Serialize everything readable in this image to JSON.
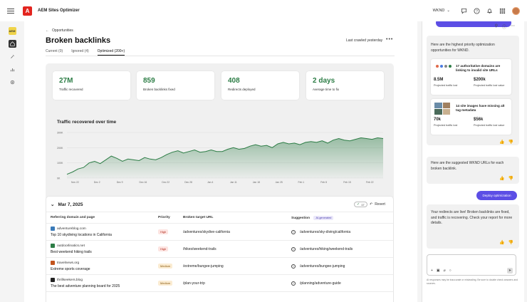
{
  "app": {
    "title": "AEM Sites Optimizer",
    "org": "WKND"
  },
  "left_rail": {
    "brand_label": "AEM"
  },
  "page": {
    "back_label": "Opportunities",
    "title": "Broken backlinks",
    "last_crawled": "Last crawled yesterday",
    "tabs": [
      {
        "label": "Current (0)",
        "active": false
      },
      {
        "label": "Ignored (4)",
        "active": false
      },
      {
        "label": "Optimized (200+)",
        "active": true
      }
    ]
  },
  "kpis": [
    {
      "value": "27M",
      "label": "Traffic recovered"
    },
    {
      "value": "859",
      "label": "Broken backlinks fixed"
    },
    {
      "value": "408",
      "label": "Redirects deployed"
    },
    {
      "value": "2 days",
      "label": "Average time to fix"
    }
  ],
  "chart_data": {
    "type": "area",
    "title": "Traffic recovered over time",
    "y_ticks": [
      "300K",
      "200K",
      "100K",
      "0K"
    ],
    "y_tick_values": [
      300,
      200,
      100,
      0
    ],
    "ylim": [
      0,
      300
    ],
    "x_ticks": [
      "Nov 22",
      "Dec 2",
      "Dec 9",
      "Dec 16",
      "Dec 22",
      "Dec 28",
      "Jan 4",
      "Jan 11",
      "Jan 18",
      "Jan 25",
      "Feb 1",
      "Feb 8",
      "Feb 15",
      "Feb 22"
    ],
    "series": [
      {
        "values": [
          25,
          40,
          60,
          70,
          100,
          110,
          95,
          120,
          145,
          130,
          110,
          125,
          120,
          115,
          135,
          125,
          120,
          135,
          155,
          170,
          180,
          165,
          175,
          185,
          170,
          175,
          185,
          175,
          175,
          190,
          200,
          190,
          195,
          210,
          220,
          210,
          215,
          200,
          225,
          235,
          225,
          230,
          220,
          235,
          240,
          235,
          245,
          230,
          250,
          260,
          250,
          245,
          255,
          265,
          260,
          255,
          265,
          260
        ]
      }
    ],
    "color": "#2d7d46"
  },
  "table": {
    "group_date": "Mar 7, 2025",
    "count": "17",
    "revert_label": "Revert",
    "headers": {
      "domain": "Referring domain and page",
      "priority": "Priority",
      "broken": "Broken target URL",
      "suggestion": "Suggestion",
      "ai_badge": "AI-generated"
    },
    "rows": [
      {
        "domain": "adventureblog.com",
        "page": "Top 10 skydiving locations in California",
        "priority": "High",
        "broken": "/adventures/skydive-california",
        "suggestion": "/adventures/sky-diving/california",
        "favicon": "#3a7ab8"
      },
      {
        "domain": "outdoorlinatics.net",
        "page": "Best weekend hiking trails",
        "priority": "High",
        "broken": "/hikes/weekend-trails",
        "suggestion": "/adventures/hiking/weekend-trails",
        "favicon": "#2d7d46"
      },
      {
        "domain": "travelnews.org",
        "page": "Extreme sports coverage",
        "priority": "Medium",
        "broken": "/extreme/bungee-jumping",
        "suggestion": "/adventures/bungee-jumping",
        "favicon": "#c2541d"
      },
      {
        "domain": "thrillseekers.blog",
        "page": "The best adventure planning board for 2025",
        "priority": "Medium",
        "broken": "/plan-your-trip",
        "suggestion": "/planning/adventure-guide",
        "favicon": "#222222"
      }
    ]
  },
  "assistant": {
    "intro": "Here are the highest priority optimization opportunities for WKND.",
    "opportunities": [
      {
        "title": "17 authoritative domains are linking to invalid site URLs",
        "metric1": "8.5M",
        "metric1_label": "Projected traffic lost",
        "metric2": "$200k",
        "metric2_label": "Projected traffic lost value"
      },
      {
        "title": "14 site images have missing alt tag metadata",
        "metric1": "70k",
        "metric1_label": "Projected traffic lost",
        "metric2": "$56k",
        "metric2_label": "Projected traffic lost value"
      }
    ],
    "suggested_msg": "Here are the suggested WKND URLs for each broken backlink.",
    "deploy_label": "Deploy optimization",
    "live_msg": "Your redirects are live! Broken backlinks are fixed, and traffic is recovering. Check your report for more details.",
    "disclaimer": "AI responses may be inaccurate or misleading. Be sure to double check answers and sources."
  }
}
